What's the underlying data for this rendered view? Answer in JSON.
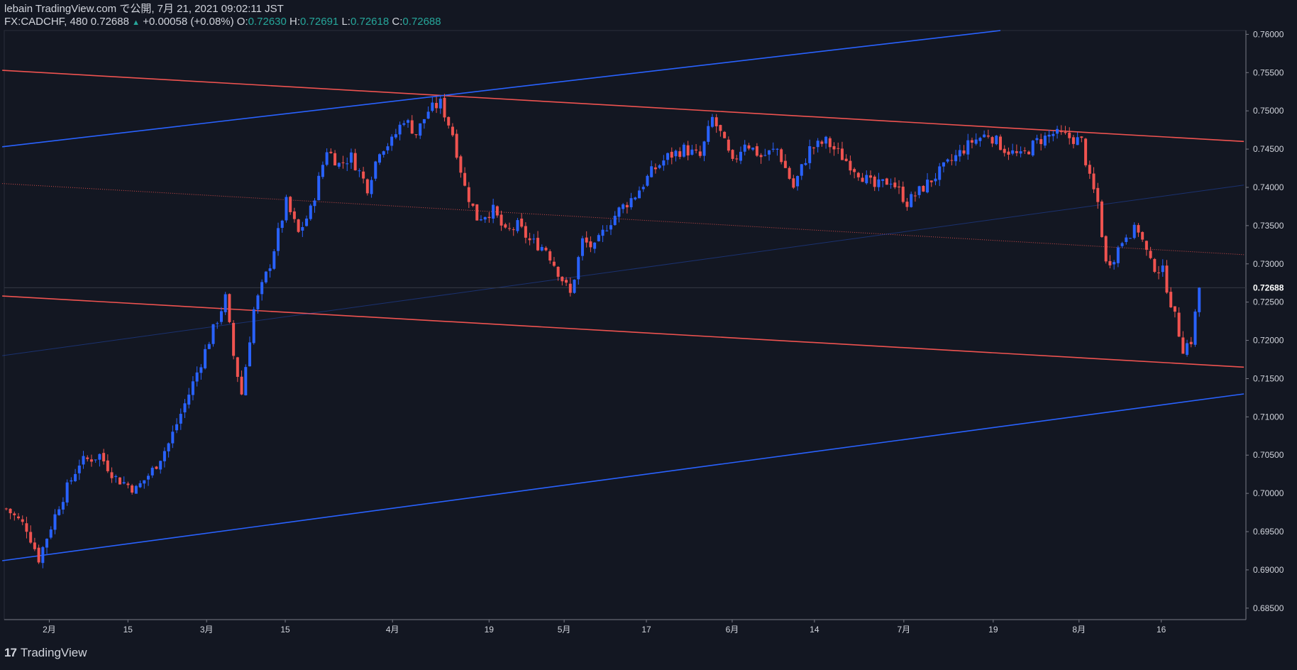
{
  "header": {
    "line1": "lebain TradingView.com で公開, 7月 21, 2021 09:02:11 JST",
    "symbol": "FX:CADCHF, 480",
    "last": "0.72688",
    "arrow": "▲",
    "change": "+0.00058 (+0.08%)",
    "o_label": "O:",
    "o": "0.72630",
    "h_label": "H:",
    "h": "0.72691",
    "l_label": "L:",
    "l": "0.72618",
    "c_label": "C:",
    "c": "0.72688"
  },
  "footer": {
    "logo_mark": "17",
    "brand": "TradingView"
  },
  "colors": {
    "background": "#131722",
    "up": "#2962ff",
    "down": "#ef5350",
    "channel_red": "#ef5350",
    "channel_blue": "#2962ff",
    "price_label_bg": "#131722",
    "text": "#d1d4dc"
  },
  "chart_data": {
    "type": "candlestick",
    "symbol": "FX:CADCHF",
    "timeframe": "480",
    "ylim": [
      0.6835,
      0.7605
    ],
    "y_ticks": [
      "0.76000",
      "0.75500",
      "0.75000",
      "0.74500",
      "0.74000",
      "0.73500",
      "0.73000",
      "0.72500",
      "0.72000",
      "0.71500",
      "0.71000",
      "0.70500",
      "0.70000",
      "0.69500",
      "0.69000",
      "0.68500"
    ],
    "x_ticks": [
      "2月",
      "15",
      "3月",
      "15",
      "4月",
      "19",
      "5月",
      "17",
      "6月",
      "14",
      "7月",
      "19",
      "8月",
      "16"
    ],
    "last_price": "0.72688",
    "close_path": [
      [
        0,
        0.698
      ],
      [
        5,
        0.6955
      ],
      [
        8,
        0.6915
      ],
      [
        13,
        0.6985
      ],
      [
        18,
        0.704
      ],
      [
        23,
        0.705
      ],
      [
        27,
        0.702
      ],
      [
        32,
        0.7005
      ],
      [
        36,
        0.703
      ],
      [
        40,
        0.7065
      ],
      [
        45,
        0.713
      ],
      [
        50,
        0.72
      ],
      [
        54,
        0.7255
      ],
      [
        56,
        0.718
      ],
      [
        58,
        0.713
      ],
      [
        61,
        0.724
      ],
      [
        65,
        0.73
      ],
      [
        69,
        0.738
      ],
      [
        72,
        0.734
      ],
      [
        75,
        0.737
      ],
      [
        79,
        0.745
      ],
      [
        82,
        0.743
      ],
      [
        85,
        0.744
      ],
      [
        89,
        0.74
      ],
      [
        92,
        0.745
      ],
      [
        95,
        0.746
      ],
      [
        98,
        0.749
      ],
      [
        101,
        0.747
      ],
      [
        104,
        0.75
      ],
      [
        107,
        0.751
      ],
      [
        110,
        0.747
      ],
      [
        113,
        0.74
      ],
      [
        116,
        0.736
      ],
      [
        120,
        0.737
      ],
      [
        123,
        0.734
      ],
      [
        126,
        0.735
      ],
      [
        129,
        0.733
      ],
      [
        133,
        0.732
      ],
      [
        136,
        0.729
      ],
      [
        139,
        0.726
      ],
      [
        142,
        0.733
      ],
      [
        145,
        0.732
      ],
      [
        148,
        0.735
      ],
      [
        151,
        0.737
      ],
      [
        155,
        0.739
      ],
      [
        159,
        0.742
      ],
      [
        163,
        0.744
      ],
      [
        167,
        0.745
      ],
      [
        171,
        0.744
      ],
      [
        174,
        0.749
      ],
      [
        176,
        0.747
      ],
      [
        179,
        0.743
      ],
      [
        182,
        0.746
      ],
      [
        186,
        0.744
      ],
      [
        190,
        0.745
      ],
      [
        194,
        0.74
      ],
      [
        198,
        0.745
      ],
      [
        202,
        0.746
      ],
      [
        206,
        0.744
      ],
      [
        210,
        0.742
      ],
      [
        214,
        0.74
      ],
      [
        218,
        0.741
      ],
      [
        222,
        0.738
      ],
      [
        226,
        0.74
      ],
      [
        230,
        0.742
      ],
      [
        234,
        0.744
      ],
      [
        238,
        0.746
      ],
      [
        242,
        0.747
      ],
      [
        246,
        0.745
      ],
      [
        250,
        0.744
      ],
      [
        254,
        0.746
      ],
      [
        258,
        0.747
      ],
      [
        262,
        0.7465
      ],
      [
        265,
        0.746
      ],
      [
        267,
        0.741
      ],
      [
        269,
        0.738
      ],
      [
        271,
        0.73
      ],
      [
        273,
        0.731
      ],
      [
        276,
        0.734
      ],
      [
        279,
        0.7345
      ],
      [
        282,
        0.73
      ],
      [
        285,
        0.729
      ],
      [
        288,
        0.723
      ],
      [
        290,
        0.719
      ],
      [
        292,
        0.72
      ],
      [
        294,
        0.7268
      ]
    ],
    "channel_lines": [
      {
        "color": "red",
        "style": "solid",
        "from": [
          -1,
          0.7553
        ],
        "to": [
          305,
          0.746
        ]
      },
      {
        "color": "red",
        "style": "solid",
        "from": [
          -1,
          0.7258
        ],
        "to": [
          305,
          0.7165
        ]
      },
      {
        "color": "red",
        "style": "dotted",
        "from": [
          -1,
          0.7405
        ],
        "to": [
          305,
          0.7312
        ]
      },
      {
        "color": "blue",
        "style": "solid",
        "from": [
          -1,
          0.7453
        ],
        "to": [
          245,
          0.7605
        ]
      },
      {
        "color": "blue",
        "style": "solid",
        "from": [
          -1,
          0.6912
        ],
        "to": [
          305,
          0.713
        ]
      },
      {
        "color": "blue",
        "style": "faint",
        "from": [
          -1,
          0.718
        ],
        "to": [
          305,
          0.7403
        ]
      }
    ],
    "grid": false
  }
}
